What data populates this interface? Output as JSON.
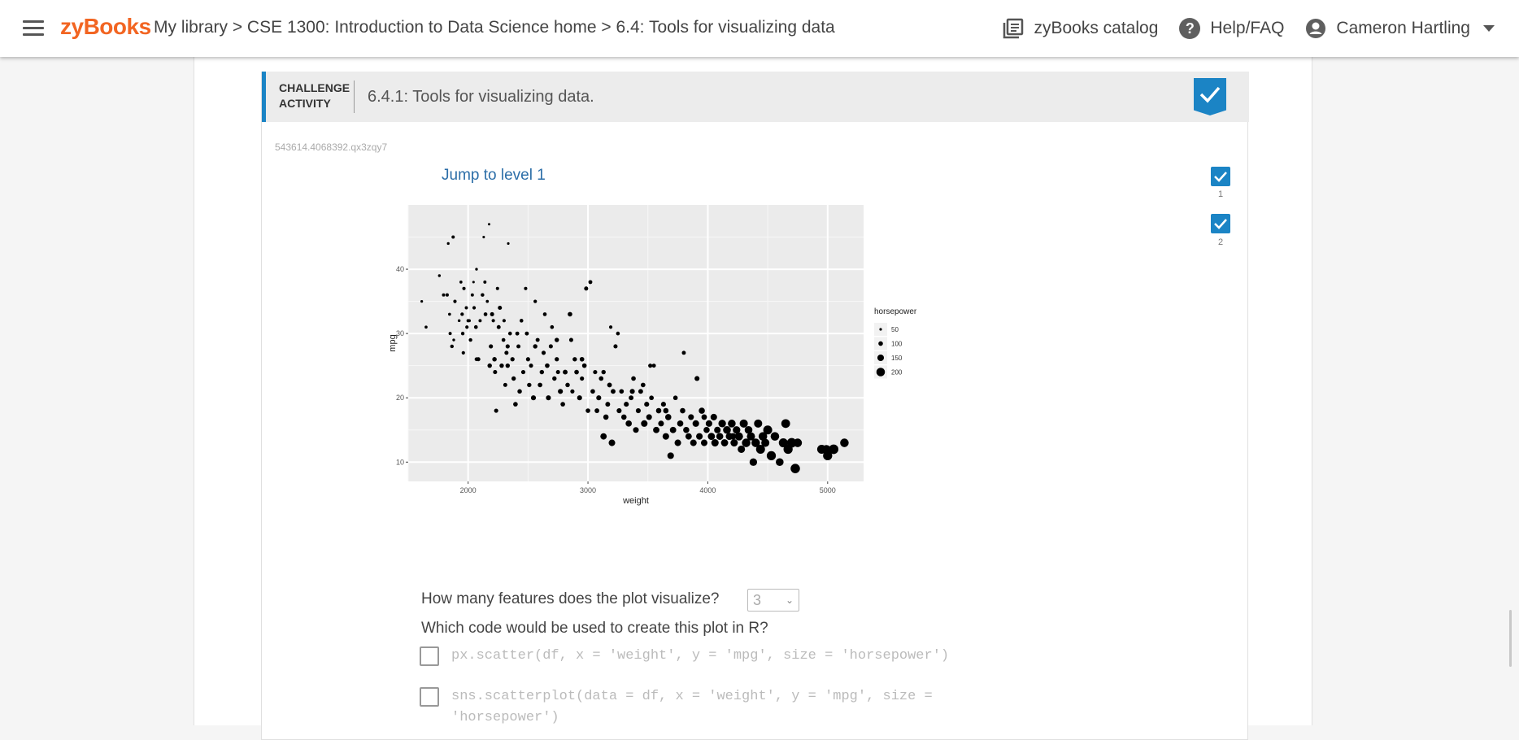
{
  "header": {
    "logo": "zyBooks",
    "breadcrumb": "My library > CSE 1300: Introduction to Data Science home > 6.4: Tools for visualizing data",
    "catalog": "zyBooks catalog",
    "help": "Help/FAQ",
    "user": "Cameron Hartling",
    "icons": {
      "menu": "hamburger-icon",
      "catalog": "library-books-icon",
      "help": "question-circle-icon",
      "user": "account-circle-icon",
      "caret": "caret-down-icon"
    }
  },
  "activity": {
    "label_line1": "CHALLENGE",
    "label_line2": "ACTIVITY",
    "title": "6.4.1: Tools for visualizing data.",
    "id": "543614.4068392.qx3zqy7",
    "jump": "Jump to level 1",
    "levels": [
      "1",
      "2"
    ],
    "accent": "#1b84c5"
  },
  "chart_data": {
    "type": "scatter",
    "xlabel": "weight",
    "ylabel": "mpg",
    "xlim": [
      1500,
      5300
    ],
    "ylim": [
      7,
      50
    ],
    "xticks": [
      "2000",
      "3000",
      "4000",
      "5000"
    ],
    "yticks": [
      "10",
      "20",
      "30",
      "40"
    ],
    "legend": {
      "title": "horsepower",
      "entries": [
        "50",
        "100",
        "150",
        "200"
      ],
      "placement": "right"
    },
    "points": [
      [
        1613,
        35,
        50
      ],
      [
        1649,
        31,
        60
      ],
      [
        1760,
        39,
        55
      ],
      [
        1795,
        36,
        65
      ],
      [
        1825,
        36,
        68
      ],
      [
        1834,
        44,
        52
      ],
      [
        1845,
        33,
        60
      ],
      [
        1850,
        30,
        65
      ],
      [
        1865,
        28,
        75
      ],
      [
        1875,
        45,
        67
      ],
      [
        1890,
        35,
        70
      ],
      [
        1925,
        32,
        55
      ],
      [
        1940,
        38,
        60
      ],
      [
        1950,
        33,
        72
      ],
      [
        1955,
        30,
        75
      ],
      [
        1965,
        37,
        68
      ],
      [
        1985,
        34,
        65
      ],
      [
        1990,
        31,
        70
      ],
      [
        2000,
        32,
        67
      ],
      [
        2020,
        29,
        75
      ],
      [
        2035,
        36,
        65
      ],
      [
        2045,
        38,
        48
      ],
      [
        2050,
        34,
        70
      ],
      [
        2065,
        31,
        80
      ],
      [
        2070,
        40,
        52
      ],
      [
        2085,
        26,
        88
      ],
      [
        2100,
        32,
        65
      ],
      [
        2120,
        36,
        75
      ],
      [
        2130,
        45,
        48
      ],
      [
        2140,
        38,
        65
      ],
      [
        2145,
        33,
        80
      ],
      [
        2160,
        35,
        60
      ],
      [
        2175,
        47,
        46
      ],
      [
        2190,
        28,
        90
      ],
      [
        2200,
        33,
        88
      ],
      [
        2210,
        32,
        70
      ],
      [
        2220,
        26,
        97
      ],
      [
        2225,
        24,
        88
      ],
      [
        2234,
        18,
        90
      ],
      [
        2245,
        37,
        67
      ],
      [
        2255,
        31,
        85
      ],
      [
        2265,
        34,
        88
      ],
      [
        2280,
        25,
        95
      ],
      [
        2295,
        29,
        80
      ],
      [
        2300,
        32,
        70
      ],
      [
        2310,
        22,
        86
      ],
      [
        2320,
        27,
        88
      ],
      [
        2330,
        25,
        95
      ],
      [
        2335,
        44,
        48
      ],
      [
        2350,
        30,
        80
      ],
      [
        2370,
        26,
        92
      ],
      [
        2380,
        23,
        95
      ],
      [
        2395,
        19,
        100
      ],
      [
        2420,
        28,
        86
      ],
      [
        2430,
        21,
        97
      ],
      [
        2445,
        32,
        78
      ],
      [
        2460,
        24,
        90
      ],
      [
        2480,
        37,
        68
      ],
      [
        2490,
        30,
        85
      ],
      [
        2500,
        26,
        90
      ],
      [
        2510,
        22,
        95
      ],
      [
        2525,
        25,
        88
      ],
      [
        2545,
        20,
        110
      ],
      [
        2560,
        35,
        72
      ],
      [
        2580,
        29,
        86
      ],
      [
        2600,
        22,
        100
      ],
      [
        2615,
        24,
        95
      ],
      [
        2630,
        27,
        90
      ],
      [
        2640,
        33,
        80
      ],
      [
        2660,
        25,
        100
      ],
      [
        2670,
        20,
        110
      ],
      [
        2690,
        28,
        88
      ],
      [
        2700,
        31,
        80
      ],
      [
        2720,
        23,
        95
      ],
      [
        2740,
        26,
        92
      ],
      [
        2750,
        24,
        88
      ],
      [
        2770,
        21,
        110
      ],
      [
        2790,
        19,
        100
      ],
      [
        2810,
        24,
        105
      ],
      [
        2830,
        22,
        97
      ],
      [
        2850,
        33,
        100
      ],
      [
        2870,
        21,
        90
      ],
      [
        2890,
        26,
        95
      ],
      [
        2905,
        24,
        100
      ],
      [
        2930,
        20,
        110
      ],
      [
        2950,
        23,
        90
      ],
      [
        2970,
        25,
        100
      ],
      [
        2985,
        37,
        88
      ],
      [
        3000,
        18,
        100
      ],
      [
        3020,
        38,
        84
      ],
      [
        3040,
        21,
        100
      ],
      [
        3060,
        24,
        90
      ],
      [
        3075,
        18,
        105
      ],
      [
        3090,
        20,
        110
      ],
      [
        3110,
        23,
        100
      ],
      [
        3130,
        14,
        145
      ],
      [
        3150,
        17,
        120
      ],
      [
        3165,
        19,
        105
      ],
      [
        3190,
        31,
        70
      ],
      [
        3200,
        13,
        150
      ],
      [
        3210,
        21,
        105
      ],
      [
        3230,
        28,
        88
      ],
      [
        3250,
        30,
        80
      ],
      [
        3260,
        18,
        110
      ],
      [
        3280,
        21,
        100
      ],
      [
        3300,
        17,
        120
      ],
      [
        3320,
        19,
        110
      ],
      [
        3340,
        16,
        140
      ],
      [
        3360,
        20,
        105
      ],
      [
        3380,
        23,
        100
      ],
      [
        3400,
        15,
        130
      ],
      [
        3420,
        18,
        110
      ],
      [
        3440,
        21,
        105
      ],
      [
        3460,
        22,
        100
      ],
      [
        3470,
        16,
        150
      ],
      [
        3490,
        19,
        110
      ],
      [
        3510,
        17,
        130
      ],
      [
        3530,
        20,
        100
      ],
      [
        3550,
        25,
        86
      ],
      [
        3570,
        15,
        145
      ],
      [
        3590,
        18,
        120
      ],
      [
        3610,
        16,
        130
      ],
      [
        3630,
        19,
        110
      ],
      [
        3650,
        14,
        150
      ],
      [
        3670,
        17,
        140
      ],
      [
        3690,
        11,
        150
      ],
      [
        3710,
        15,
        145
      ],
      [
        3730,
        20,
        100
      ],
      [
        3750,
        13,
        150
      ],
      [
        3770,
        16,
        140
      ],
      [
        3790,
        18,
        120
      ],
      [
        3800,
        27,
        85
      ],
      [
        3820,
        15,
        140
      ],
      [
        3840,
        14,
        145
      ],
      [
        3860,
        17,
        130
      ],
      [
        3880,
        13,
        150
      ],
      [
        3900,
        16,
        150
      ],
      [
        3910,
        23,
        110
      ],
      [
        3930,
        14,
        150
      ],
      [
        3950,
        18,
        140
      ],
      [
        3970,
        13,
        150
      ],
      [
        3990,
        15,
        140
      ],
      [
        4010,
        16,
        150
      ],
      [
        4030,
        14,
        165
      ],
      [
        4050,
        17,
        150
      ],
      [
        4060,
        13,
        170
      ],
      [
        4080,
        15,
        150
      ],
      [
        4100,
        14,
        160
      ],
      [
        4120,
        16,
        175
      ],
      [
        4140,
        13,
        165
      ],
      [
        4160,
        15,
        180
      ],
      [
        4180,
        14,
        165
      ],
      [
        4200,
        16,
        180
      ],
      [
        4220,
        13,
        170
      ],
      [
        4240,
        15,
        175
      ],
      [
        4260,
        14,
        190
      ],
      [
        4280,
        12,
        170
      ],
      [
        4300,
        16,
        190
      ],
      [
        4320,
        13,
        200
      ],
      [
        4340,
        15,
        180
      ],
      [
        4360,
        14,
        190
      ],
      [
        4380,
        10,
        175
      ],
      [
        4400,
        13,
        200
      ],
      [
        4420,
        16,
        190
      ],
      [
        4440,
        12,
        210
      ],
      [
        4460,
        14,
        200
      ],
      [
        4480,
        13,
        190
      ],
      [
        4500,
        15,
        210
      ],
      [
        4530,
        11,
        215
      ],
      [
        4560,
        14,
        200
      ],
      [
        4600,
        10,
        180
      ],
      [
        4630,
        13,
        210
      ],
      [
        4650,
        16,
        205
      ],
      [
        4670,
        12,
        215
      ],
      [
        4700,
        13,
        225
      ],
      [
        4730,
        9,
        220
      ],
      [
        4750,
        13,
        200
      ],
      [
        4950,
        12,
        210
      ],
      [
        4990,
        12,
        200
      ],
      [
        5000,
        11,
        215
      ],
      [
        5050,
        12,
        225
      ],
      [
        5140,
        13,
        200
      ],
      [
        3520,
        25,
        90
      ],
      [
        3130,
        24,
        95
      ],
      [
        2860,
        29,
        88
      ],
      [
        2560,
        28,
        95
      ],
      [
        2410,
        30,
        85
      ],
      [
        2180,
        25,
        97
      ],
      [
        2010,
        32,
        60
      ],
      [
        1880,
        29,
        55
      ],
      [
        1960,
        27,
        70
      ],
      [
        2070,
        26,
        80
      ],
      [
        2330,
        28,
        90
      ],
      [
        2740,
        29,
        95
      ],
      [
        2950,
        26,
        100
      ],
      [
        3180,
        22,
        105
      ],
      [
        3370,
        21,
        110
      ],
      [
        3650,
        18,
        120
      ],
      [
        3970,
        17,
        125
      ],
      [
        4210,
        14,
        150
      ]
    ]
  },
  "question1": {
    "text": "How many features does the plot visualize?",
    "selected": "3"
  },
  "question2": {
    "text": "Which code would be used to create this plot in R?",
    "options": [
      "px.scatter(df, x = 'weight', y = 'mpg', size = 'horsepower')",
      "sns.scatterplot(data = df, x = 'weight', y = 'mpg', size = "
    ],
    "option2_line2": "'horsepower')"
  }
}
